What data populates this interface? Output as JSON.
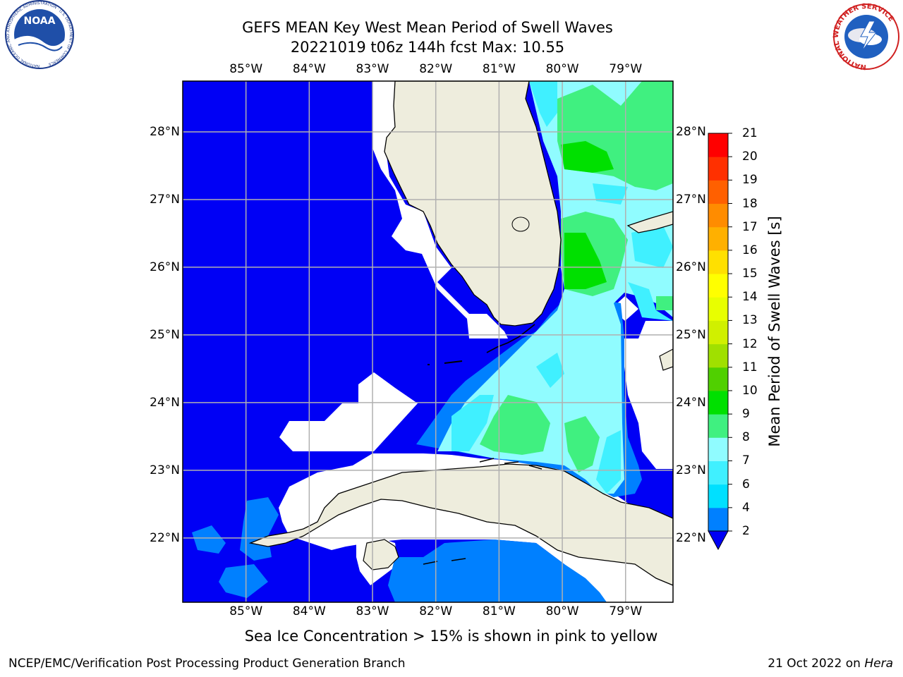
{
  "title": {
    "line1": "GEFS MEAN Key West Mean Period of Swell Waves",
    "line2": "20221019 t06z 144h fcst   Max: 10.55"
  },
  "map": {
    "lon_ticks": [
      "85°W",
      "84°W",
      "83°W",
      "82°W",
      "81°W",
      "80°W",
      "79°W"
    ],
    "lat_ticks": [
      "28°N",
      "27°N",
      "26°N",
      "25°N",
      "24°N",
      "23°N",
      "22°N"
    ],
    "lon_range": [
      -86.0,
      -78.25
    ],
    "lat_range": [
      21.05,
      28.75
    ],
    "colors": {
      "land": "#eeeddd",
      "coast": "#000000",
      "grid": "#b0b0b0",
      "deep": "#0000f5"
    }
  },
  "colorbar": {
    "title": "Mean Period of Swell Waves [s]",
    "levels": [
      "2",
      "4",
      "6",
      "7",
      "8",
      "9",
      "10",
      "11",
      "12",
      "13",
      "14",
      "15",
      "16",
      "17",
      "18",
      "19",
      "20",
      "21"
    ],
    "colors": [
      "#0080ff",
      "#00e0ff",
      "#40f0ff",
      "#90fcff",
      "#40f080",
      "#00e000",
      "#50d000",
      "#a0e000",
      "#d0f000",
      "#e8ff00",
      "#ffff00",
      "#ffe000",
      "#ffb000",
      "#ff8c00",
      "#ff6000",
      "#ff3000",
      "#ff0000"
    ],
    "extend_color": "#0000f5"
  },
  "footnote": "Sea Ice Concentration > 15% is shown in pink to yellow",
  "footer": {
    "left": "NCEP/EMC/Verification Post Processing Product Generation Branch",
    "right_prefix": "21 Oct 2022 on ",
    "right_host": "Hera"
  },
  "logos": {
    "noaa_text": "NOAA",
    "noaa_ring": "NATIONAL OCEANIC AND ATMOSPHERIC ADMINISTRATION · U.S. DEPARTMENT OF COMMERCE",
    "nws_ring": "NATIONAL WEATHER SERVICE"
  }
}
